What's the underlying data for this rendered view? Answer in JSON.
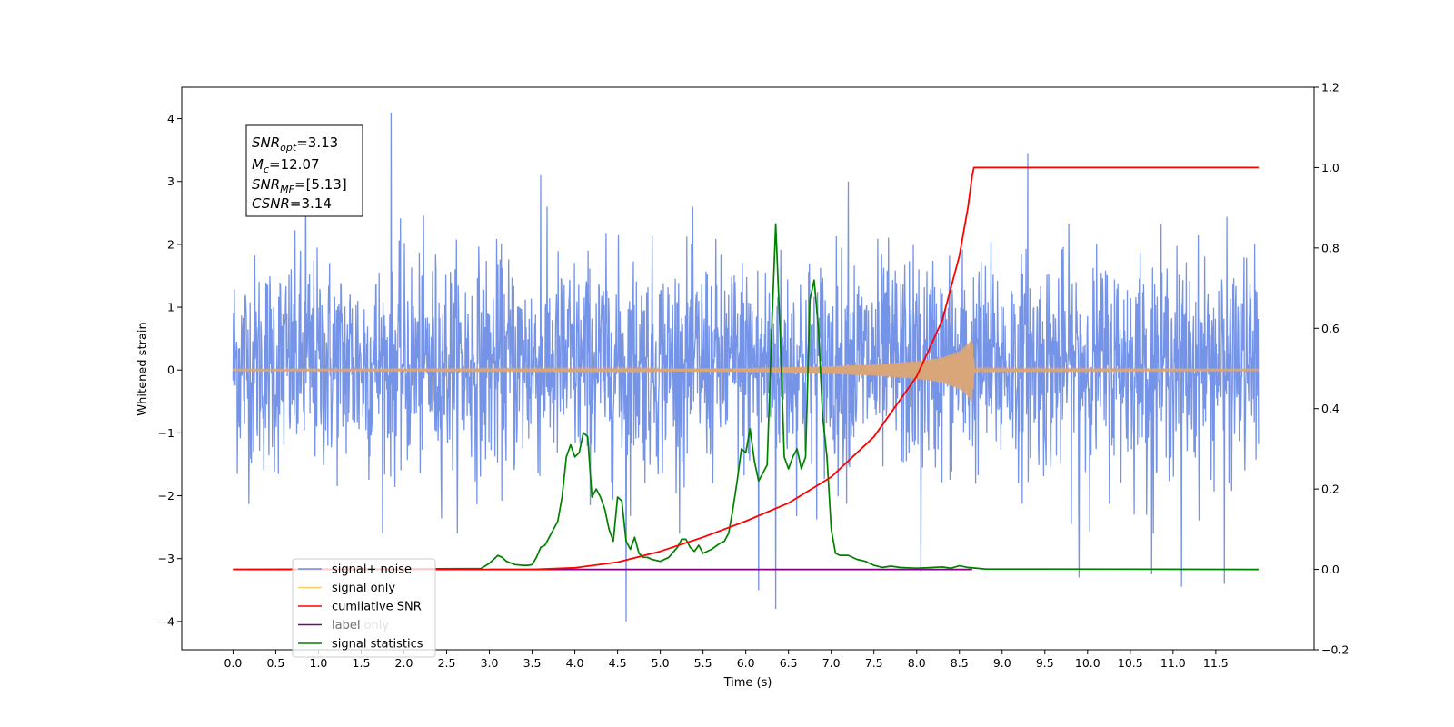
{
  "chart_data": {
    "type": "line",
    "xlabel": "Time (s)",
    "ylabel": "Whitened strain",
    "xlim": [
      -0.6,
      12.65
    ],
    "ylim_left": [
      -4.45,
      4.5
    ],
    "ylim_right": [
      -0.2,
      1.2
    ],
    "x_ticks": [
      0.0,
      0.5,
      1.0,
      1.5,
      2.0,
      2.5,
      3.0,
      3.5,
      4.0,
      4.5,
      5.0,
      5.5,
      6.0,
      6.5,
      7.0,
      7.5,
      8.0,
      8.5,
      9.0,
      9.5,
      10.0,
      10.5,
      11.0,
      11.5
    ],
    "x_tick_labels": [
      "0.0",
      "0.5",
      "1.0",
      "1.5",
      "2.0",
      "2.5",
      "3.0",
      "3.5",
      "4.0",
      "4.5",
      "5.0",
      "5.5",
      "6.0",
      "6.5",
      "7.0",
      "7.5",
      "8.0",
      "8.5",
      "9.0",
      "9.5",
      "10.0",
      "10.5",
      "11.0",
      "11.5"
    ],
    "y_ticks_left": [
      -4,
      -3,
      -2,
      -1,
      0,
      1,
      2,
      3,
      4
    ],
    "y_tick_labels_left": [
      "−4",
      "−3",
      "−2",
      "−1",
      "0",
      "1",
      "2",
      "3",
      "4"
    ],
    "y_ticks_right": [
      -0.2,
      0.0,
      0.2,
      0.4,
      0.6,
      0.8,
      1.0,
      1.2
    ],
    "y_tick_labels_right": [
      "−0.2",
      "0.0",
      "0.2",
      "0.4",
      "0.6",
      "0.8",
      "1.0",
      "1.2"
    ],
    "legend_position": "lower-left",
    "colors": {
      "signal_noise": "#6f8ee6",
      "signal_only": "#d9a679",
      "cumulative_snr": "#ff0000",
      "label": "#800080",
      "signal_statistics": "#008000"
    },
    "annotation": {
      "snr_opt": "=3.13",
      "mc": "=12.07",
      "snr_mf": "=[5.13]",
      "csnr": "=3.14"
    },
    "series": [
      {
        "name": "signal+ noise",
        "axis": "left",
        "style": "noise",
        "x_range": [
          0.0,
          12.0
        ],
        "envelope": [
          -2.2,
          2.4
        ],
        "peaks_x": [
          1.85,
          6.15,
          9.3,
          0.85,
          7.2,
          3.6
        ],
        "peaks_y": [
          4.1,
          3.5,
          3.45,
          3.3,
          3.0,
          3.1
        ],
        "dips_x": [
          4.6,
          6.35,
          11.1,
          11.6,
          6.15,
          9.9,
          10.75,
          8.05
        ],
        "dips_y": [
          -4.0,
          -3.8,
          -3.45,
          -3.4,
          -3.5,
          -3.3,
          -3.25,
          -3.2
        ]
      },
      {
        "name": "signal only",
        "axis": "left",
        "style": "chirp",
        "x": [
          0.0,
          5.0,
          6.0,
          7.0,
          7.5,
          8.0,
          8.3,
          8.5,
          8.6,
          8.65,
          8.68,
          12.0
        ],
        "amplitude": [
          0.01,
          0.02,
          0.03,
          0.06,
          0.09,
          0.14,
          0.2,
          0.3,
          0.42,
          0.5,
          0.02,
          0.01
        ]
      },
      {
        "name": "cumilative SNR",
        "axis": "right",
        "x": [
          0.0,
          3.5,
          4.0,
          4.5,
          5.0,
          5.5,
          6.0,
          6.5,
          7.0,
          7.5,
          8.0,
          8.3,
          8.5,
          8.6,
          8.65,
          8.67,
          12.0
        ],
        "y": [
          0.0,
          0.0,
          0.004,
          0.018,
          0.045,
          0.08,
          0.12,
          0.165,
          0.23,
          0.33,
          0.48,
          0.62,
          0.78,
          0.9,
          0.98,
          1.0,
          1.0
        ]
      },
      {
        "name": "label",
        "axis": "right",
        "x": [
          3.0,
          8.65
        ],
        "y": [
          0.0,
          0.0
        ]
      },
      {
        "name": "label only",
        "axis": "right",
        "x": [],
        "y": []
      },
      {
        "name": "signal statistics",
        "axis": "right",
        "x": [
          0.0,
          2.9,
          3.0,
          3.1,
          3.15,
          3.2,
          3.3,
          3.4,
          3.45,
          3.5,
          3.55,
          3.6,
          3.65,
          3.7,
          3.75,
          3.8,
          3.85,
          3.9,
          3.95,
          4.0,
          4.05,
          4.1,
          4.15,
          4.2,
          4.25,
          4.3,
          4.35,
          4.4,
          4.45,
          4.5,
          4.55,
          4.6,
          4.65,
          4.7,
          4.75,
          4.8,
          4.85,
          4.9,
          5.0,
          5.1,
          5.2,
          5.25,
          5.3,
          5.35,
          5.4,
          5.45,
          5.5,
          5.6,
          5.7,
          5.75,
          5.8,
          5.85,
          5.9,
          5.95,
          6.0,
          6.05,
          6.1,
          6.15,
          6.2,
          6.25,
          6.3,
          6.35,
          6.4,
          6.45,
          6.5,
          6.55,
          6.6,
          6.65,
          6.7,
          6.75,
          6.8,
          6.85,
          6.9,
          6.95,
          7.0,
          7.05,
          7.1,
          7.2,
          7.3,
          7.4,
          7.5,
          7.6,
          7.7,
          7.8,
          7.9,
          8.0,
          8.1,
          8.3,
          8.4,
          8.45,
          8.5,
          8.6,
          8.8,
          12.0
        ],
        "y": [
          0.0,
          0.002,
          0.015,
          0.035,
          0.03,
          0.02,
          0.012,
          0.01,
          0.01,
          0.012,
          0.03,
          0.055,
          0.06,
          0.08,
          0.1,
          0.12,
          0.18,
          0.28,
          0.31,
          0.28,
          0.29,
          0.34,
          0.33,
          0.18,
          0.2,
          0.18,
          0.15,
          0.1,
          0.07,
          0.18,
          0.17,
          0.07,
          0.05,
          0.08,
          0.04,
          0.03,
          0.03,
          0.025,
          0.02,
          0.03,
          0.055,
          0.075,
          0.075,
          0.055,
          0.045,
          0.06,
          0.04,
          0.05,
          0.065,
          0.07,
          0.09,
          0.15,
          0.22,
          0.3,
          0.29,
          0.35,
          0.27,
          0.22,
          0.24,
          0.26,
          0.58,
          0.86,
          0.6,
          0.28,
          0.25,
          0.28,
          0.3,
          0.25,
          0.28,
          0.67,
          0.72,
          0.6,
          0.38,
          0.28,
          0.1,
          0.04,
          0.035,
          0.035,
          0.025,
          0.02,
          0.01,
          0.005,
          0.008,
          0.005,
          0.004,
          0.003,
          0.004,
          0.006,
          0.003,
          0.006,
          0.009,
          0.005,
          0.001,
          0.0
        ]
      }
    ]
  }
}
